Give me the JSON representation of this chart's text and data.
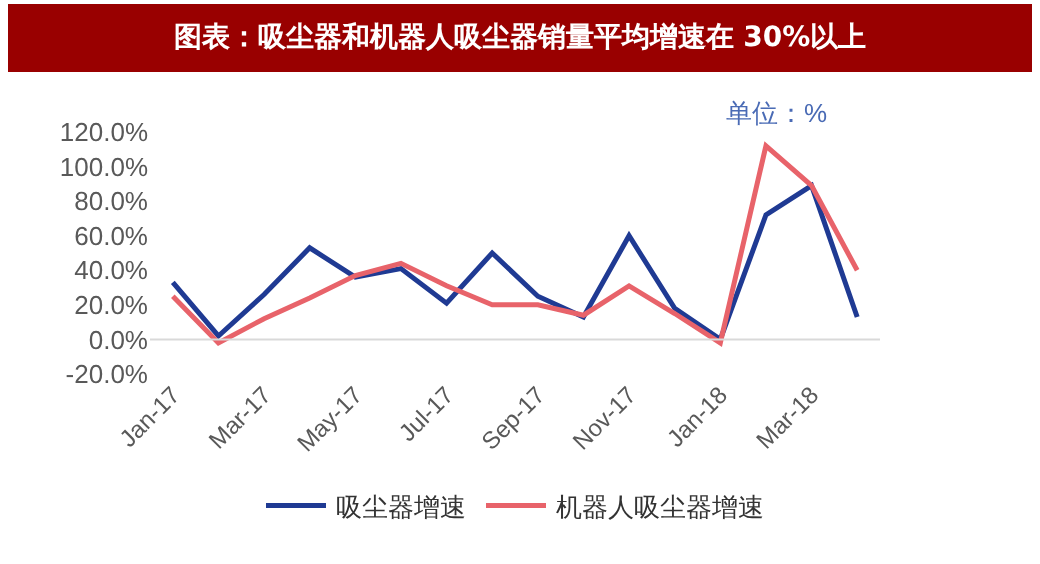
{
  "chart_data": {
    "type": "line",
    "title": "图表：吸尘器和机器人吸尘器销量平均增速在 30%以上",
    "categories": [
      "Jan-17",
      null,
      "Mar-17",
      null,
      "May-17",
      null,
      "Jul-17",
      null,
      "Sep-17",
      null,
      "Nov-17",
      null,
      "Jan-18",
      null,
      "Mar-18",
      null
    ],
    "series": [
      {
        "name": "吸尘器增速",
        "color": "#1f3a93",
        "values": [
          33,
          2,
          26,
          53,
          36,
          41,
          21,
          50,
          25,
          13,
          60,
          18,
          0,
          72,
          89,
          13
        ]
      },
      {
        "name": "机器人吸尘器增速",
        "color": "#e8636a",
        "values": [
          25,
          -2,
          12,
          24,
          37,
          44,
          31,
          20,
          20,
          14,
          31,
          15,
          -2,
          112,
          89,
          40
        ]
      }
    ],
    "ylim": [
      -20,
      120
    ],
    "yticks": [
      {
        "value": -20,
        "label": "-20.0%"
      },
      {
        "value": 0,
        "label": "0.0%"
      },
      {
        "value": 20,
        "label": "20.0%"
      },
      {
        "value": 40,
        "label": "40.0%"
      },
      {
        "value": 60,
        "label": "60.0%"
      },
      {
        "value": 80,
        "label": "80.0%"
      },
      {
        "value": 100,
        "label": "100.0%"
      },
      {
        "value": 120,
        "label": "120.0%"
      }
    ],
    "annotations": [
      "单位：%"
    ],
    "grid": false,
    "legend": "bottom",
    "line_style": "solid",
    "marker": "none"
  }
}
